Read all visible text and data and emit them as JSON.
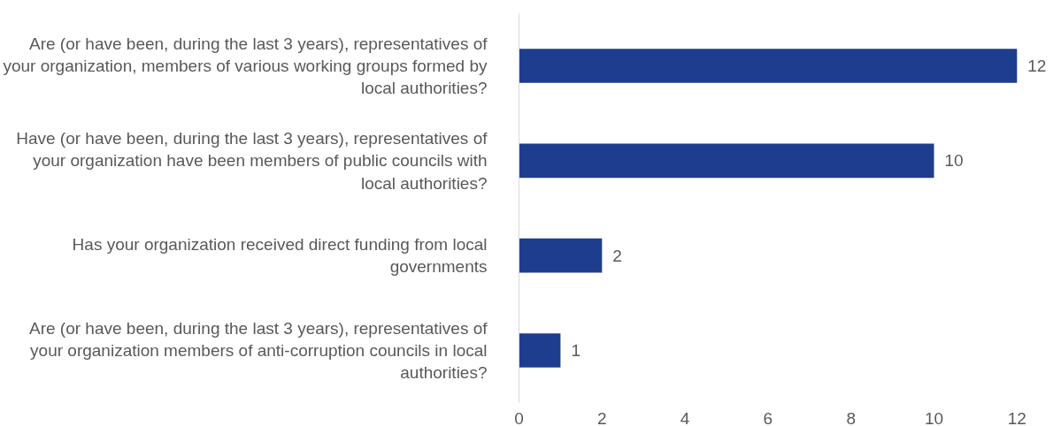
{
  "chart_data": {
    "type": "bar",
    "orientation": "horizontal",
    "categories": [
      "Are (or have been, during the last 3 years), representatives of your organization, members of various working groups formed by local authorities?",
      "Have (or have been, during the last 3 years), representatives of your organization have been members of public councils with local authorities?",
      "Has your organization received direct funding from local governments",
      "Are (or have been, during the last 3 years), representatives of your organization members of anti-corruption councils in local authorities?"
    ],
    "values": [
      12,
      10,
      2,
      1
    ],
    "color": "#1f3d8f",
    "xlim": [
      0,
      12
    ],
    "xticks": [
      0,
      2,
      4,
      6,
      8,
      10,
      12
    ],
    "data_labels": true,
    "grid": false
  }
}
